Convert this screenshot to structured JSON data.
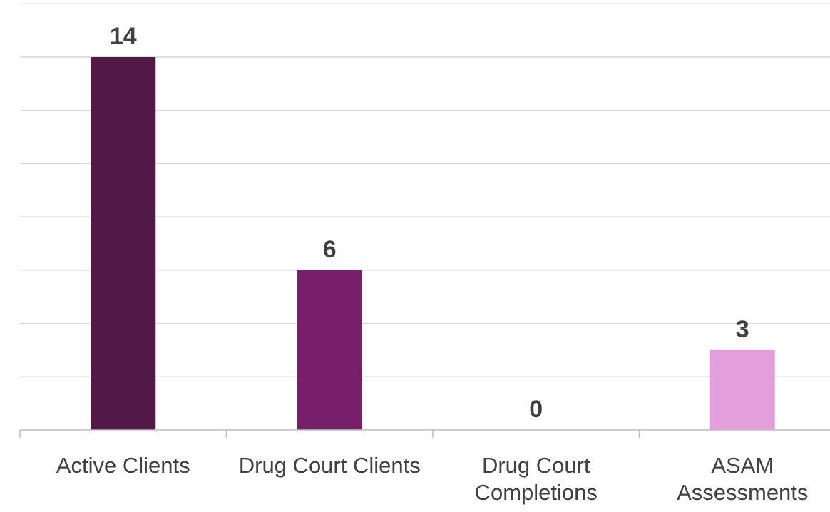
{
  "chart_data": {
    "type": "bar",
    "categories": [
      [
        "Active Clients"
      ],
      [
        "Drug Court Clients"
      ],
      [
        "Drug Court",
        "Completions"
      ],
      [
        "ASAM",
        "Assessments"
      ]
    ],
    "values": [
      14,
      6,
      0,
      3
    ],
    "data_labels": [
      "14",
      "6",
      "0",
      "3"
    ],
    "colors": [
      "#521947",
      "#771F6B",
      "#771F6B",
      "#E39EDC"
    ],
    "title": "",
    "xlabel": "",
    "ylabel": "",
    "ylim": [
      0,
      16
    ],
    "y_gridline_step": 2,
    "y_tick_labels_visible": false,
    "grid": true,
    "legend": "none"
  }
}
